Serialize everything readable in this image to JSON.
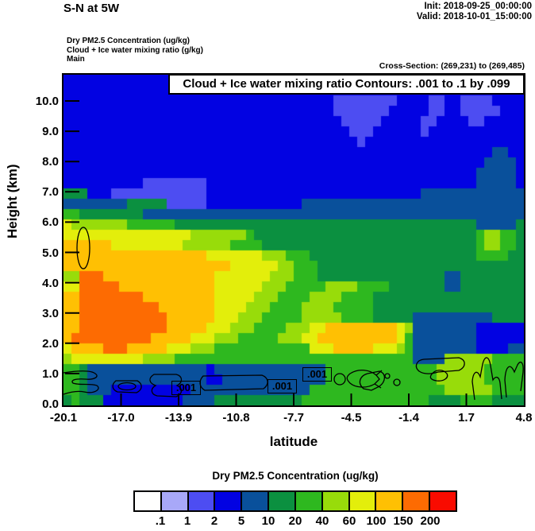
{
  "header": {
    "title": "S-N at 5W",
    "init": "Init: 2018-09-25_00:00:00",
    "valid": "Valid: 2018-10-01_15:00:00"
  },
  "subtitle": {
    "field1": "Dry PM2.5 Concentration   (ug/kg)",
    "field2": "Cloud + Ice water mixing ratio   (g/kg)",
    "field3": "Main",
    "cross_section": "Cross-Section: (269,231) to (269,485)"
  },
  "plot": {
    "annotation": "Cloud + Ice water mixing ratio Contours: .001 to .1 by .099",
    "contour_label": ".001"
  },
  "chart_data": {
    "type": "heatmap",
    "title": "Dry PM2.5 Concentration cross-section S-N at 5W",
    "xlabel": "latitude",
    "ylabel": "Height (km)",
    "x_ticks": [
      "-20.1",
      "-17.0",
      "-13.9",
      "-10.8",
      "-7.7",
      "-4.5",
      "-1.4",
      "1.7",
      "4.8"
    ],
    "y_ticks": [
      "10.0",
      "9.0",
      "8.0",
      "7.0",
      "6.0",
      "5.0",
      "4.0",
      "3.0",
      "2.0",
      "1.0",
      "0.0"
    ],
    "x_range": [
      -20.1,
      4.8
    ],
    "y_range_km": [
      0.0,
      10.9
    ],
    "grid_on": false,
    "overlay_contours": {
      "field": "Cloud + Ice water mixing ratio",
      "levels": ".001 to .1 by .099",
      "label": ".001"
    },
    "colorbar": {
      "title": "Dry PM2.5 Concentration  (ug/kg)",
      "labels": [
        ".1",
        "1",
        "2",
        "5",
        "10",
        "20",
        "40",
        "60",
        "100",
        "150",
        "200"
      ],
      "colors": [
        "#fffffe",
        "#a8a8f8",
        "#4d4df2",
        "#0202e2",
        "#09509b",
        "#0b9040",
        "#2eb81f",
        "#98dc0a",
        "#e3ee0b",
        "#ffc003",
        "#fd6b02",
        "#f90b00"
      ]
    },
    "grid": {
      "cols": 58,
      "rows": 32,
      "palette": {
        "0": "#fffffe",
        "1": "#a8a8f8",
        "2": "#4d4df2",
        "3": "#0202e2",
        "4": "#09509b",
        "5": "#0b9040",
        "6": "#2eb81f",
        "7": "#98dc0a",
        "8": "#e3ee0b",
        "9": "#ffc003",
        "a": "#fd6b02",
        "b": "#f90b00"
      },
      "cells": [
        "3333333333333333333333333333333333333333333333333333333333",
        "3333333333333333333333333333333333333333333333333333333333",
        "3333333333333333333333333333333333222222223333223322223333",
        "3333333333333333333333333333333333222222233333223322222333",
        "3333333333333333333333333333333333322222333332233332233333",
        "3333333333333333333333333333333333332223333332333333333333",
        "3333333333333333333333333333333333333233333333333333333333",
        "3333333333333333333333333333333333333333333333333333334433",
        "3333333333333333333333333333333333333333333333333333344443",
        "3333333333333333333333333333333333333333333333333333444443",
        "3333333333222222223333333333333333333333333333333333444443",
        "5553332222222222223333333333333333333333333334444444444444",
        "4444444455555222223333333333334444444444444444444444444444",
        "6655555555444444444444444444444444444444444444444444444444",
        "8777777766666655555555555555555555555555555555555555444445",
        "8888888888888888777777765555555555555555555555555555677665",
        "9999998888888887777776666555555555555555555555555555677665",
        "9999999999999999998888888777666555555555555555555555666655",
        "9999999999999999999998888887766655555555555555555555555555",
        "77aaa99999999999999888888877766655555555555555554455555555",
        "88aaaaa999999999999888888777666667777666655555554455555555",
        "99aaaaaaaa999999999888887776666777766665555555555555555555",
        "99aaaaaaaaaa9999999888877766667777666665555555555555555555",
        "99aaaaaaaaaaa999999888777666667777766665555544444444445555",
        "99aaaaaaaaaaa999998887776666777889999999998744444444333333",
        "9aaaaaaaaaa99999888777666667778899999999998644444444333333",
        "89999aaa99999888777666666666666888999998887644444444333344",
        "7888888888777766666666666666666666666666666644447777776666",
        "6654444444444444443444444444444446666666666666677777766666",
        "6654444444444444443344444444444446666666666666677777766666",
        "6654443333333333444444444444444666666666666666667777776666",
        "5655533333333334444555555555556666666666666666555566665555"
      ]
    }
  }
}
